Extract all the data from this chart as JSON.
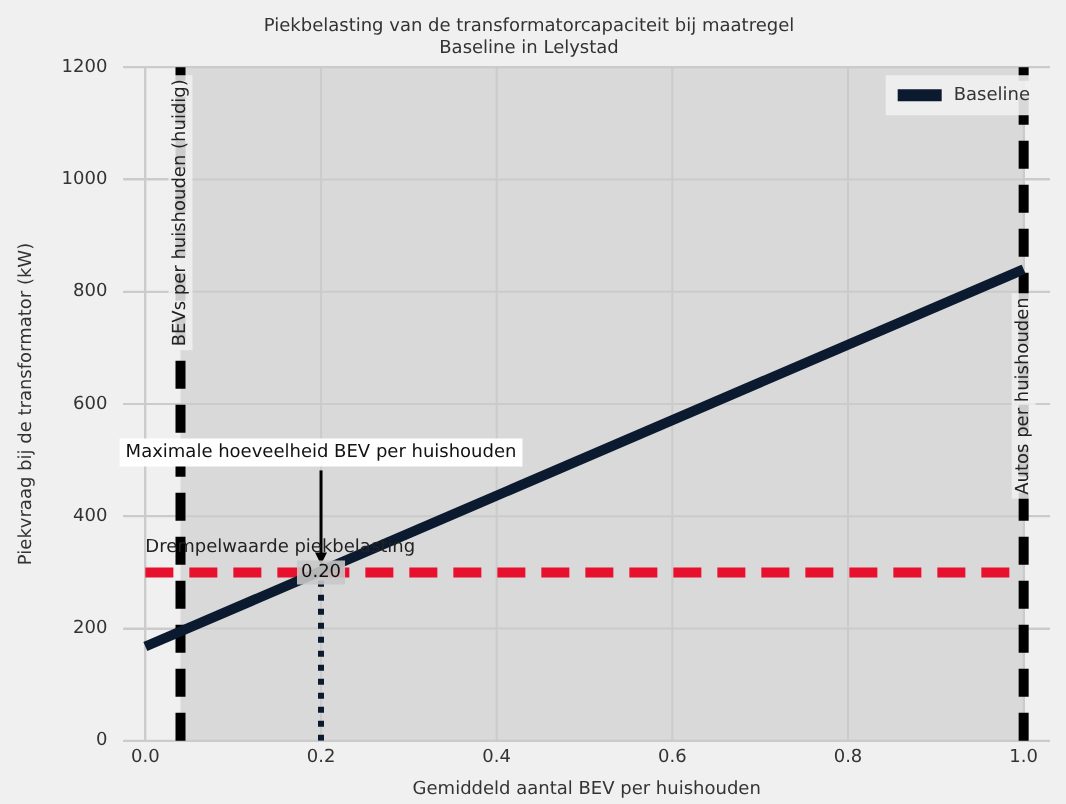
{
  "chart_data": {
    "type": "line",
    "title": "Piekbelasting van de transformatorcapaciteit bij maatregel\nBaseline in Lelystad",
    "xlabel": "Gemiddeld aantal BEV per huishouden",
    "ylabel": "Piekvraag bij de transformator (kW)",
    "x": [
      0,
      1
    ],
    "series": [
      {
        "name": "Baseline",
        "color": "#0b1a2e",
        "values": [
          168,
          840
        ],
        "line_style": "solid"
      },
      {
        "type": "line",
        "color": "#0b1a2e",
        "x": [
          0.2,
          0.2
        ],
        "values": [
          0,
          300
        ],
        "line_style": "dotted"
      }
    ],
    "ref_lines": [
      {
        "axis": "y",
        "value": 300,
        "label": "Drempelwaarde piekbelasting",
        "color": "#e8112d",
        "line_style": "dashed"
      },
      {
        "axis": "x",
        "value": 0.04,
        "label": "BEVs per huishouden (huidig)",
        "color": "#000000",
        "line_style": "dashed"
      },
      {
        "axis": "x",
        "value": 1.0,
        "label": "Autos per huishouden",
        "color": "#000000",
        "line_style": "dashed"
      }
    ],
    "bands": [
      {
        "axis": "x",
        "from": 0.04,
        "to": 1.0,
        "color": "#d9d9d9"
      }
    ],
    "annotations": [
      {
        "text": "Maximale hoeveelheid BEV per huishouden",
        "x": 0.2,
        "y": 300
      },
      {
        "text": "0.20",
        "x": 0.2,
        "y": 300
      }
    ],
    "xlim": [
      -0.025,
      1.03
    ],
    "xticks": [
      {
        "value": 0,
        "label": "0.0"
      },
      0.2,
      0.4,
      0.6,
      0.8,
      {
        "value": 1,
        "label": "1.0"
      }
    ],
    "ylim": [
      0,
      1200
    ],
    "yticks": [
      0,
      200,
      400,
      600,
      800,
      1000,
      1200
    ],
    "grid": true,
    "legend": "top right"
  }
}
